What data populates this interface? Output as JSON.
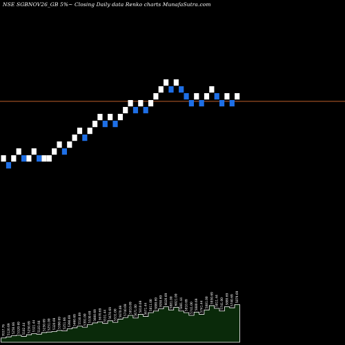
{
  "chart_data": {
    "type": "renko",
    "title": "NSE SGBNOV26_GB 5%~  Closing Daily data  Renko  charts MunafaSutra.com",
    "reference_level": 5800,
    "brick_size": 70,
    "bricks": [
      {
        "open": 5180,
        "close": 5250,
        "dir": "up"
      },
      {
        "open": 5180,
        "close": 5110,
        "dir": "down"
      },
      {
        "open": 5180,
        "close": 5250,
        "dir": "up"
      },
      {
        "open": 5250,
        "close": 5320,
        "dir": "up"
      },
      {
        "open": 5250,
        "close": 5180,
        "dir": "down"
      },
      {
        "open": 5180,
        "close": 5250,
        "dir": "up"
      },
      {
        "open": 5250,
        "close": 5320,
        "dir": "up"
      },
      {
        "open": 5250,
        "close": 5180,
        "dir": "down"
      },
      {
        "open": 5180,
        "close": 5250,
        "dir": "up"
      },
      {
        "open": 5180,
        "close": 5250,
        "dir": "up"
      },
      {
        "open": 5250,
        "close": 5320,
        "dir": "up"
      },
      {
        "open": 5320,
        "close": 5390,
        "dir": "up"
      },
      {
        "open": 5320,
        "close": 5250,
        "dir": "down"
      },
      {
        "open": 5320,
        "close": 5390,
        "dir": "up"
      },
      {
        "open": 5390,
        "close": 5460,
        "dir": "up"
      },
      {
        "open": 5460,
        "close": 5530,
        "dir": "up"
      },
      {
        "open": 5460,
        "close": 5390,
        "dir": "down"
      },
      {
        "open": 5460,
        "close": 5530,
        "dir": "up"
      },
      {
        "open": 5530,
        "close": 5600,
        "dir": "up"
      },
      {
        "open": 5600,
        "close": 5670,
        "dir": "up"
      },
      {
        "open": 5600,
        "close": 5530,
        "dir": "down"
      },
      {
        "open": 5600,
        "close": 5670,
        "dir": "up"
      },
      {
        "open": 5600,
        "close": 5530,
        "dir": "down"
      },
      {
        "open": 5600,
        "close": 5670,
        "dir": "up"
      },
      {
        "open": 5670,
        "close": 5740,
        "dir": "up"
      },
      {
        "open": 5740,
        "close": 5810,
        "dir": "up"
      },
      {
        "open": 5740,
        "close": 5670,
        "dir": "down"
      },
      {
        "open": 5740,
        "close": 5810,
        "dir": "up"
      },
      {
        "open": 5740,
        "close": 5670,
        "dir": "down"
      },
      {
        "open": 5740,
        "close": 5810,
        "dir": "up"
      },
      {
        "open": 5810,
        "close": 5880,
        "dir": "up"
      },
      {
        "open": 5880,
        "close": 5950,
        "dir": "up"
      },
      {
        "open": 5950,
        "close": 6020,
        "dir": "up"
      },
      {
        "open": 5950,
        "close": 5880,
        "dir": "down"
      },
      {
        "open": 5950,
        "close": 6020,
        "dir": "up"
      },
      {
        "open": 5950,
        "close": 5880,
        "dir": "down"
      },
      {
        "open": 5880,
        "close": 5810,
        "dir": "down"
      },
      {
        "open": 5810,
        "close": 5740,
        "dir": "down"
      },
      {
        "open": 5810,
        "close": 5880,
        "dir": "up"
      },
      {
        "open": 5810,
        "close": 5740,
        "dir": "down"
      },
      {
        "open": 5810,
        "close": 5880,
        "dir": "up"
      },
      {
        "open": 5880,
        "close": 5950,
        "dir": "up"
      },
      {
        "open": 5880,
        "close": 5810,
        "dir": "down"
      },
      {
        "open": 5810,
        "close": 5740,
        "dir": "down"
      },
      {
        "open": 5810,
        "close": 5880,
        "dir": "up"
      },
      {
        "open": 5810,
        "close": 5740,
        "dir": "down"
      },
      {
        "open": 5810,
        "close": 5880,
        "dir": "up"
      }
    ],
    "volume_labels": [
      "7037.76",
      "5120.69",
      "5250.66",
      "5320.69",
      "5182.44",
      "5250.69",
      "5321.44",
      "5183.66",
      "5250.69",
      "5251.00",
      "5320.69",
      "5390.69",
      "5251.66",
      "5390.69",
      "5460.69",
      "5530.69",
      "5391.00",
      "5530.69",
      "5600.69",
      "5670.69",
      "5531.44",
      "5670.69",
      "5531.00",
      "5670.69",
      "5740.69",
      "5810.69",
      "5671.00",
      "5810.69",
      "5671.44",
      "5811.00",
      "5880.69",
      "5950.69",
      "6020.69",
      "5881.00",
      "6021.00",
      "5881.44",
      "5810.69",
      "5741.00",
      "5880.69",
      "5741.44",
      "5881.00",
      "5950.69",
      "5811.44",
      "5741.00",
      "5880.69",
      "5740.69",
      "5879.69"
    ],
    "volume_profile": [
      0.08,
      0.1,
      0.12,
      0.13,
      0.11,
      0.14,
      0.16,
      0.15,
      0.18,
      0.19,
      0.2,
      0.22,
      0.21,
      0.25,
      0.27,
      0.3,
      0.28,
      0.33,
      0.36,
      0.38,
      0.35,
      0.4,
      0.37,
      0.43,
      0.46,
      0.5,
      0.45,
      0.52,
      0.48,
      0.55,
      0.58,
      0.62,
      0.66,
      0.6,
      0.65,
      0.58,
      0.55,
      0.5,
      0.56,
      0.52,
      0.6,
      0.68,
      0.63,
      0.58,
      0.66,
      0.64,
      0.7
    ],
    "colors": {
      "background": "#000000",
      "up_brick": "#ffffff",
      "down_brick": "#1e6fe6",
      "reference_line": "#c0602a",
      "volume_fill": "#0a2a0a",
      "volume_stroke": "#ffffff"
    },
    "grid": false
  }
}
